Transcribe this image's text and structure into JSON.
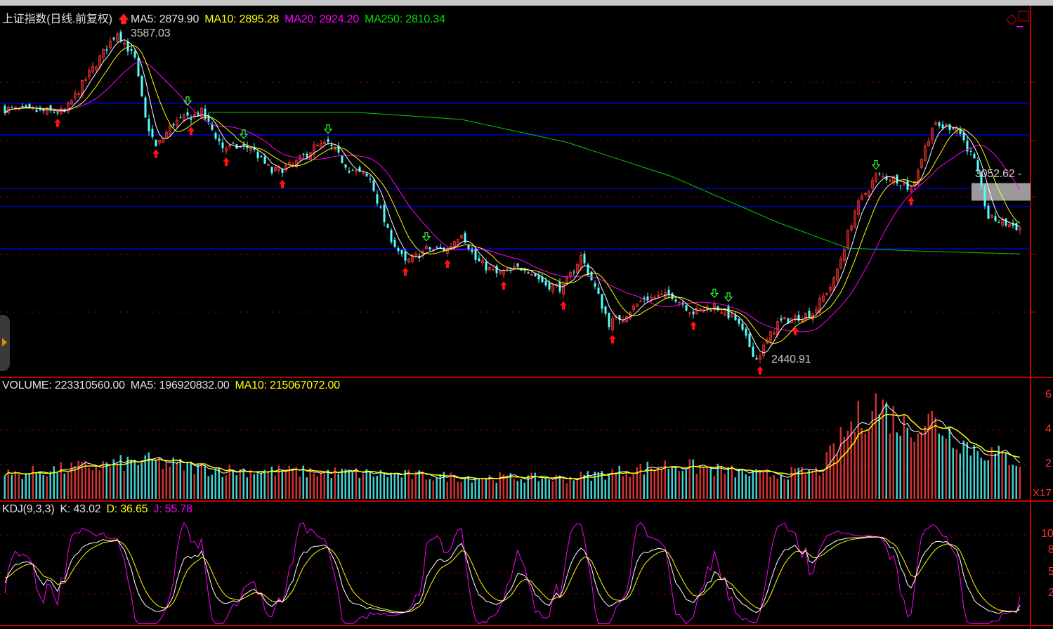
{
  "main": {
    "title": "上证指数(日线.前复权)",
    "ma5_label": "MA5: 2879.90",
    "ma10_label": "MA10: 2895.28",
    "ma20_label": "MA20: 2924.20",
    "ma250_label": "MA250: 2810.34",
    "high_marker": "3587.03",
    "low_marker": "2440.91",
    "price_tag": "3052.62 -",
    "up_arrow_icon": "red-up-arrow"
  },
  "volume": {
    "volume_label": "VOLUME: 223310560.00",
    "ma5_label": "MA5: 196920832.00",
    "ma10_label": "MA10: 215067072.00",
    "axis_ticks": [
      "6",
      "4",
      "2"
    ],
    "scale_label": "X17"
  },
  "kdj": {
    "title": "KDJ(9,3,3)",
    "k_label": "K: 43.02",
    "d_label": "D: 36.65",
    "j_label": "J: 55.78",
    "axis_ticks": [
      "10",
      "8",
      "5",
      "2"
    ]
  },
  "colors": {
    "up": "#ff3232",
    "down": "#54ffff",
    "ma5": "#ffffff",
    "ma10": "#ffff00",
    "ma20": "#ff00ff",
    "ma250": "#00d000",
    "grid": "#b00000",
    "hline": "#0000ff"
  },
  "chart_data": [
    {
      "type": "candlestick",
      "title": "上证指数(日线.前复权)",
      "ylim": [
        2380,
        3660
      ],
      "day_count": 290,
      "close_waypoints": [
        [
          0,
          3317
        ],
        [
          8,
          3309
        ],
        [
          17,
          3305
        ],
        [
          24,
          3440
        ],
        [
          32,
          3587
        ],
        [
          37,
          3489
        ],
        [
          40,
          3280
        ],
        [
          43,
          3182
        ],
        [
          48,
          3268
        ],
        [
          56,
          3305
        ],
        [
          62,
          3182
        ],
        [
          70,
          3182
        ],
        [
          76,
          3096
        ],
        [
          82,
          3120
        ],
        [
          88,
          3182
        ],
        [
          92,
          3194
        ],
        [
          98,
          3108
        ],
        [
          104,
          3071
        ],
        [
          109,
          2887
        ],
        [
          114,
          2777
        ],
        [
          120,
          2826
        ],
        [
          126,
          2826
        ],
        [
          130,
          2887
        ],
        [
          134,
          2789
        ],
        [
          140,
          2740
        ],
        [
          148,
          2764
        ],
        [
          154,
          2703
        ],
        [
          159,
          2691
        ],
        [
          164,
          2801
        ],
        [
          168,
          2691
        ],
        [
          172,
          2568
        ],
        [
          176,
          2592
        ],
        [
          182,
          2654
        ],
        [
          190,
          2666
        ],
        [
          196,
          2605
        ],
        [
          202,
          2629
        ],
        [
          208,
          2580
        ],
        [
          214,
          2441
        ],
        [
          220,
          2568
        ],
        [
          230,
          2605
        ],
        [
          236,
          2715
        ],
        [
          242,
          2961
        ],
        [
          248,
          3084
        ],
        [
          254,
          3071
        ],
        [
          258,
          3034
        ],
        [
          264,
          3255
        ],
        [
          271,
          3255
        ],
        [
          276,
          3133
        ],
        [
          280,
          2936
        ],
        [
          286,
          2912
        ],
        [
          289,
          2900
        ]
      ],
      "ma250_waypoints": [
        [
          58,
          3305
        ],
        [
          100,
          3305
        ],
        [
          130,
          3280
        ],
        [
          160,
          3200
        ],
        [
          190,
          3080
        ],
        [
          220,
          2920
        ],
        [
          240,
          2830
        ],
        [
          260,
          2820
        ],
        [
          289,
          2810
        ]
      ],
      "horizontal_lines": [
        3336,
        3226,
        3039,
        2975,
        2828
      ],
      "annotations": [
        {
          "text": "3587.03",
          "value": 3587.03
        },
        {
          "text": "2440.91",
          "value": 2440.91
        },
        {
          "text": "3052.62",
          "value": 3052.62
        }
      ]
    },
    {
      "type": "bar",
      "title": "VOLUME",
      "unit_note": "X17",
      "ylim": [
        0,
        6.5
      ],
      "volume_waypoints": [
        [
          0,
          1.4
        ],
        [
          40,
          2.2
        ],
        [
          60,
          1.7
        ],
        [
          100,
          1.5
        ],
        [
          125,
          1.3
        ],
        [
          160,
          1.2
        ],
        [
          190,
          2.0
        ],
        [
          215,
          1.4
        ],
        [
          232,
          1.6
        ],
        [
          240,
          4.0
        ],
        [
          248,
          5.6
        ],
        [
          256,
          4.2
        ],
        [
          264,
          4.6
        ],
        [
          275,
          3.0
        ],
        [
          289,
          2.2
        ]
      ]
    },
    {
      "type": "line",
      "title": "KDJ(9,3,3)",
      "series": [
        {
          "name": "K",
          "last": 43.02
        },
        {
          "name": "D",
          "last": 36.65
        },
        {
          "name": "J",
          "last": 55.78
        }
      ],
      "ylim": [
        -10,
        115
      ]
    }
  ]
}
